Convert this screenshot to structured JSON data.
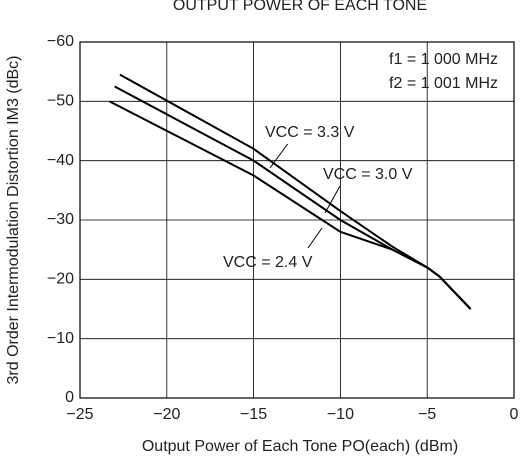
{
  "chart_data": {
    "type": "line",
    "title": "OUTPUT POWER OF EACH TONE",
    "xlabel": "Output Power of Each Tone  PO(each)  (dBm)",
    "ylabel": "3rd Order Intermodulation Distortion  IM3  (dBc)",
    "annotations": [
      "f1 = 1 000 MHz",
      "f2 = 1 001 MHz"
    ],
    "xlim": [
      -25,
      0
    ],
    "xticks": [
      {
        "value": -25,
        "label": "−25"
      },
      {
        "value": -20,
        "label": "−20"
      },
      {
        "value": -15,
        "label": "−15"
      },
      {
        "value": -10,
        "label": "−10"
      },
      {
        "value": -5,
        "label": "−5"
      },
      0
    ],
    "ylim": [
      0,
      -60
    ],
    "yticks": [
      {
        "value": -60,
        "label": "−60"
      },
      {
        "value": -50,
        "label": "−50"
      },
      {
        "value": -40,
        "label": "−40"
      },
      {
        "value": -30,
        "label": "−30"
      },
      {
        "value": -20,
        "label": "−20"
      },
      {
        "value": -10,
        "label": "−10"
      },
      0
    ],
    "grid": true,
    "series": [
      {
        "name": "VCC = 3.3 V",
        "color": "#000000",
        "x": [
          -22.7,
          -15,
          -10,
          -7,
          -5,
          -4.3,
          -2.5
        ],
        "values": [
          -54.5,
          -42,
          -31.5,
          -25.5,
          -22,
          -20.5,
          -15
        ]
      },
      {
        "name": "VCC = 3.0 V",
        "color": "#000000",
        "x": [
          -23,
          -15,
          -10,
          -7,
          -5,
          -4.3,
          -2.5
        ],
        "values": [
          -52.5,
          -40,
          -30,
          -25,
          -22,
          -20.5,
          -15
        ]
      },
      {
        "name": "VCC = 2.4 V",
        "color": "#000000",
        "x": [
          -23.3,
          -15,
          -10,
          -7,
          -5,
          -4.3,
          -2.5
        ],
        "values": [
          -50,
          -37.5,
          -28,
          -25,
          -22,
          -20.5,
          -15
        ]
      }
    ]
  }
}
